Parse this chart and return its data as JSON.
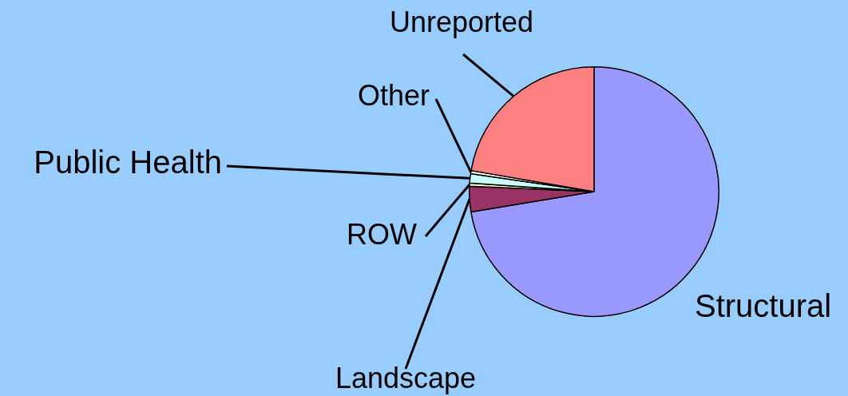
{
  "chart_data": {
    "type": "pie",
    "categories": [
      "Structural",
      "Landscape",
      "ROW",
      "Public Health",
      "Other",
      "Unreported"
    ],
    "values": [
      72.4,
      3.3,
      0.4,
      1.2,
      0.4,
      22.3
    ],
    "colors": [
      "#9999ff",
      "#993366",
      "#ffffcc",
      "#ccffff",
      "#ffffff",
      "#ff8080"
    ],
    "legend": false
  }
}
